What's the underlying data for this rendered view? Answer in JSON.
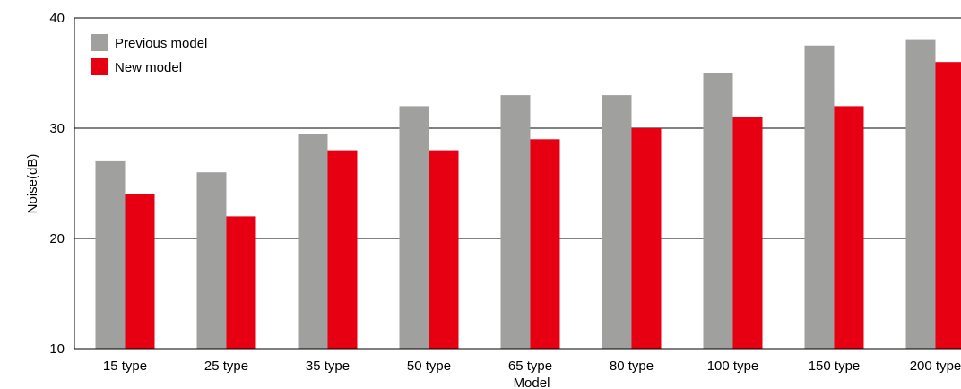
{
  "chart_data": {
    "type": "bar",
    "categories": [
      "15 type",
      "25 type",
      "35 type",
      "50 type",
      "65 type",
      "80 type",
      "100 type",
      "150 type",
      "200 type"
    ],
    "series": [
      {
        "name": "Previous model",
        "color": "#a0a09f",
        "values": [
          27,
          26,
          29.5,
          32,
          33,
          33,
          35,
          37.5,
          38
        ]
      },
      {
        "name": "New model",
        "color": "#e60012",
        "values": [
          24,
          22,
          28,
          28,
          29,
          30,
          31,
          32,
          36
        ]
      }
    ],
    "title": "",
    "xlabel": "Model",
    "ylabel": "Noise(dB)",
    "ylim": [
      10,
      40
    ],
    "yticks": [
      10,
      20,
      30,
      40
    ],
    "grid": true,
    "legend_position": "top-left"
  }
}
